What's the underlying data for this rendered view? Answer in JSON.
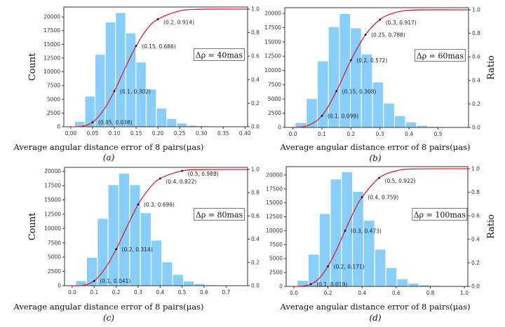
{
  "colors": {
    "bar": "#87cefa",
    "curve": "#e0202a",
    "point": "#111111",
    "axis": "#333333"
  },
  "chart_data": [
    {
      "type": "bar",
      "panel_label": "(a)",
      "annotation": "Δρ = 40mas",
      "xlabel": "Average angular distance error of 8 pairs(μas)",
      "ylabel": "Count",
      "y2label": "",
      "xlim": [
        -0.016,
        0.406
      ],
      "ylim": [
        0,
        21800
      ],
      "y2lim": [
        0,
        1
      ],
      "xticks": [
        0.0,
        0.05,
        0.1,
        0.15,
        0.2,
        0.25,
        0.3,
        0.35,
        0.4
      ],
      "xtick_labels": [
        "0.00",
        "0.05",
        "0.10",
        "0.15",
        "0.20",
        "0.25",
        "0.30",
        "0.35",
        "0.40"
      ],
      "yticks": [
        0,
        2500,
        5000,
        7500,
        10000,
        12500,
        15000,
        17500,
        20000
      ],
      "y2ticks": [
        "0.0",
        "0.2",
        "0.4",
        "0.6",
        "0.8",
        "1.0"
      ],
      "bin_width": 0.0235,
      "bin_start": 0.0086,
      "values": [
        900,
        5500,
        13100,
        19000,
        20700,
        17000,
        11700,
        6800,
        3300,
        1400,
        600,
        200,
        100,
        50
      ],
      "cdf_points": [
        {
          "x": 0.05,
          "y": 0.038,
          "label": "(0.05, 0.038)"
        },
        {
          "x": 0.1,
          "y": 0.302,
          "label": "(0.1, 0.302)"
        },
        {
          "x": 0.15,
          "y": 0.686,
          "label": "(0.15, 0.686)"
        },
        {
          "x": 0.2,
          "y": 0.914,
          "label": "(0.2, 0.914)"
        }
      ],
      "cdf_curve": [
        [
          0,
          0
        ],
        [
          0.025,
          0.004
        ],
        [
          0.05,
          0.038
        ],
        [
          0.075,
          0.14
        ],
        [
          0.1,
          0.302
        ],
        [
          0.125,
          0.5
        ],
        [
          0.15,
          0.686
        ],
        [
          0.175,
          0.83
        ],
        [
          0.2,
          0.914
        ],
        [
          0.25,
          0.985
        ],
        [
          0.3,
          0.999
        ],
        [
          0.406,
          1
        ]
      ]
    },
    {
      "type": "bar",
      "panel_label": "(b)",
      "annotation": "Δρ = 60mas",
      "xlabel": "Average angular distance error of 8 pairs(μas)",
      "ylabel": "",
      "y2label": "Ratio",
      "xlim": [
        -0.028,
        0.605
      ],
      "ylim": [
        0,
        21000
      ],
      "y2lim": [
        0,
        1
      ],
      "xticks": [
        0.0,
        0.1,
        0.2,
        0.3,
        0.4,
        0.5
      ],
      "xtick_labels": [
        "0.0",
        "0.1",
        "0.2",
        "0.3",
        "0.4",
        "0.5"
      ],
      "yticks": [
        0,
        2500,
        5000,
        7500,
        10000,
        12500,
        15000,
        17500,
        20000
      ],
      "y2ticks": [
        "0.0",
        "0.2",
        "0.4",
        "0.6",
        "0.8",
        "1.0"
      ],
      "bin_width": 0.038,
      "bin_start": 0.008,
      "values": [
        800,
        5000,
        11600,
        17600,
        19900,
        17400,
        12800,
        7900,
        4200,
        2000,
        900,
        300,
        100
      ],
      "cdf_points": [
        {
          "x": 0.1,
          "y": 0.099,
          "label": "(0.1, 0.099)"
        },
        {
          "x": 0.15,
          "y": 0.308,
          "label": "(0.15, 0.308)"
        },
        {
          "x": 0.2,
          "y": 0.572,
          "label": "(0.2, 0.572)"
        },
        {
          "x": 0.25,
          "y": 0.788,
          "label": "(0.25, 0.788)"
        },
        {
          "x": 0.3,
          "y": 0.917,
          "label": "(0.3, 0.917)"
        }
      ],
      "cdf_curve": [
        [
          0,
          0
        ],
        [
          0.05,
          0.015
        ],
        [
          0.1,
          0.099
        ],
        [
          0.15,
          0.308
        ],
        [
          0.2,
          0.572
        ],
        [
          0.25,
          0.788
        ],
        [
          0.3,
          0.917
        ],
        [
          0.35,
          0.975
        ],
        [
          0.42,
          0.998
        ],
        [
          0.605,
          1
        ]
      ]
    },
    {
      "type": "bar",
      "panel_label": "(c)",
      "annotation": "Δρ = 80mas",
      "xlabel": "Average angular distance error of 8 pairs(μas)",
      "ylabel": "Count",
      "y2label": "",
      "xlim": [
        -0.035,
        0.798
      ],
      "ylim": [
        0,
        20700
      ],
      "y2lim": [
        0,
        1
      ],
      "xticks": [
        0.0,
        0.1,
        0.2,
        0.3,
        0.4,
        0.5,
        0.6,
        0.7
      ],
      "xtick_labels": [
        "0.0",
        "0.1",
        "0.2",
        "0.3",
        "0.4",
        "0.5",
        "0.6",
        "0.7"
      ],
      "yticks": [
        0,
        2500,
        5000,
        7500,
        10000,
        12500,
        15000,
        17500,
        20000
      ],
      "y2ticks": [
        "0.0",
        "0.2",
        "0.4",
        "0.6",
        "0.8",
        "1.0"
      ],
      "bin_width": 0.049,
      "bin_start": 0.016,
      "values": [
        800,
        4900,
        11700,
        17600,
        19600,
        17600,
        12700,
        7900,
        4100,
        1900,
        750,
        300,
        100
      ],
      "cdf_points": [
        {
          "x": 0.1,
          "y": 0.041,
          "label": "(0.1, 0.041)"
        },
        {
          "x": 0.2,
          "y": 0.314,
          "label": "(0.2, 0.314)"
        },
        {
          "x": 0.3,
          "y": 0.699,
          "label": "(0.3, 0.699)"
        },
        {
          "x": 0.4,
          "y": 0.922,
          "label": "(0.4, 0.922)"
        },
        {
          "x": 0.5,
          "y": 0.988,
          "label": "(0.5, 0.988)"
        }
      ],
      "cdf_curve": [
        [
          0,
          0
        ],
        [
          0.05,
          0.004
        ],
        [
          0.1,
          0.041
        ],
        [
          0.15,
          0.15
        ],
        [
          0.2,
          0.314
        ],
        [
          0.25,
          0.51
        ],
        [
          0.3,
          0.699
        ],
        [
          0.35,
          0.835
        ],
        [
          0.4,
          0.922
        ],
        [
          0.5,
          0.988
        ],
        [
          0.6,
          0.999
        ],
        [
          0.798,
          1
        ]
      ]
    },
    {
      "type": "bar",
      "panel_label": "(d)",
      "annotation": "Δρ = 100mas",
      "xlabel": "Average angular distance error of 8 pairs(μas)",
      "ylabel": "",
      "y2label": "Ratio",
      "xlim": [
        -0.045,
        1.02
      ],
      "ylim": [
        0,
        21500
      ],
      "y2lim": [
        0,
        1
      ],
      "xticks": [
        0.0,
        0.2,
        0.4,
        0.6,
        0.8,
        1.0
      ],
      "xtick_labels": [
        "0.0",
        "0.2",
        "0.4",
        "0.6",
        "0.8",
        "1.0"
      ],
      "yticks": [
        0,
        2500,
        5000,
        7500,
        10000,
        12500,
        15000,
        17500,
        20000
      ],
      "y2ticks": [
        "0.0",
        "0.2",
        "0.4",
        "0.6",
        "0.8",
        "1.0"
      ],
      "bin_width": 0.065,
      "bin_start": 0.019,
      "values": [
        1000,
        5700,
        13000,
        19200,
        20500,
        17000,
        11800,
        6600,
        3300,
        1300,
        500,
        200,
        100
      ],
      "cdf_points": [
        {
          "x": 0.1,
          "y": 0.019,
          "label": "(0.1, 0.019)"
        },
        {
          "x": 0.2,
          "y": 0.171,
          "label": "(0.2, 0.171)"
        },
        {
          "x": 0.3,
          "y": 0.473,
          "label": "(0.3, 0.473)"
        },
        {
          "x": 0.4,
          "y": 0.759,
          "label": "(0.4, 0.759)"
        },
        {
          "x": 0.5,
          "y": 0.922,
          "label": "(0.5, 0.922)"
        }
      ],
      "cdf_curve": [
        [
          0,
          0
        ],
        [
          0.05,
          0.003
        ],
        [
          0.1,
          0.019
        ],
        [
          0.15,
          0.07
        ],
        [
          0.2,
          0.171
        ],
        [
          0.25,
          0.31
        ],
        [
          0.3,
          0.473
        ],
        [
          0.35,
          0.63
        ],
        [
          0.4,
          0.759
        ],
        [
          0.5,
          0.922
        ],
        [
          0.6,
          0.982
        ],
        [
          0.7,
          0.998
        ],
        [
          1.02,
          1
        ]
      ]
    }
  ]
}
